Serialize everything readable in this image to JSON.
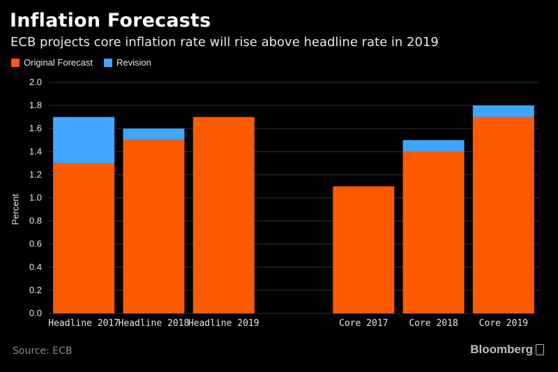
{
  "chart_data": {
    "type": "bar",
    "stacked": true,
    "title": "Inflation Forecasts",
    "subtitle": "ECB projects core inflation rate will rise above headline rate in 2019",
    "ylabel": "Percent",
    "xlabel": "",
    "ylim": [
      0,
      2.0
    ],
    "yticks": [
      "0.0",
      "0.2",
      "0.4",
      "0.6",
      "0.8",
      "1.0",
      "1.2",
      "1.4",
      "1.6",
      "1.8",
      "2.0"
    ],
    "grid": true,
    "legend_position": "top-left",
    "categories": [
      "Headline 2017",
      "Headline 2018",
      "Headline 2019",
      "",
      "Core 2017",
      "Core 2018",
      "Core 2019"
    ],
    "series": [
      {
        "name": "Original Forecast",
        "color": "#ff5a00",
        "values": [
          1.3,
          1.5,
          1.7,
          null,
          1.1,
          1.4,
          1.7
        ]
      },
      {
        "name": "Revision",
        "color": "#3fa6ff",
        "values": [
          0.4,
          0.1,
          0.0,
          null,
          0.0,
          0.1,
          0.1
        ]
      }
    ]
  },
  "footer": {
    "source": "Source: ECB",
    "brand": "Bloomberg"
  }
}
